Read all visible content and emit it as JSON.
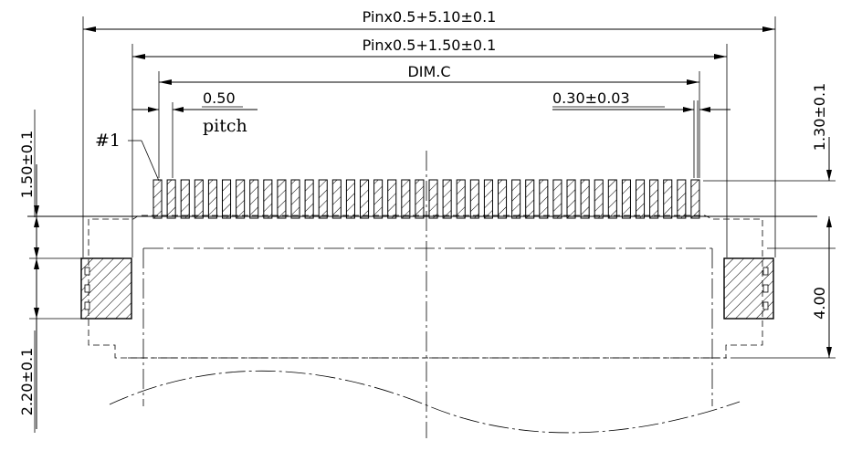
{
  "labels": {
    "overall_width": "Pinx0.5+5.10±0.1",
    "pad_span": "Pinx0.5+1.50±0.1",
    "dim_c": "DIM.C",
    "pitch_value": "0.50",
    "pitch_word": "pitch",
    "pad_width": "0.30±0.03",
    "pin1": "#1",
    "left_top_height": "1.50±0.1",
    "left_bottom_height": "2.20±0.1",
    "right_top_height": "1.30±0.1",
    "right_height": "4.00"
  },
  "pins": {
    "count": 40
  }
}
